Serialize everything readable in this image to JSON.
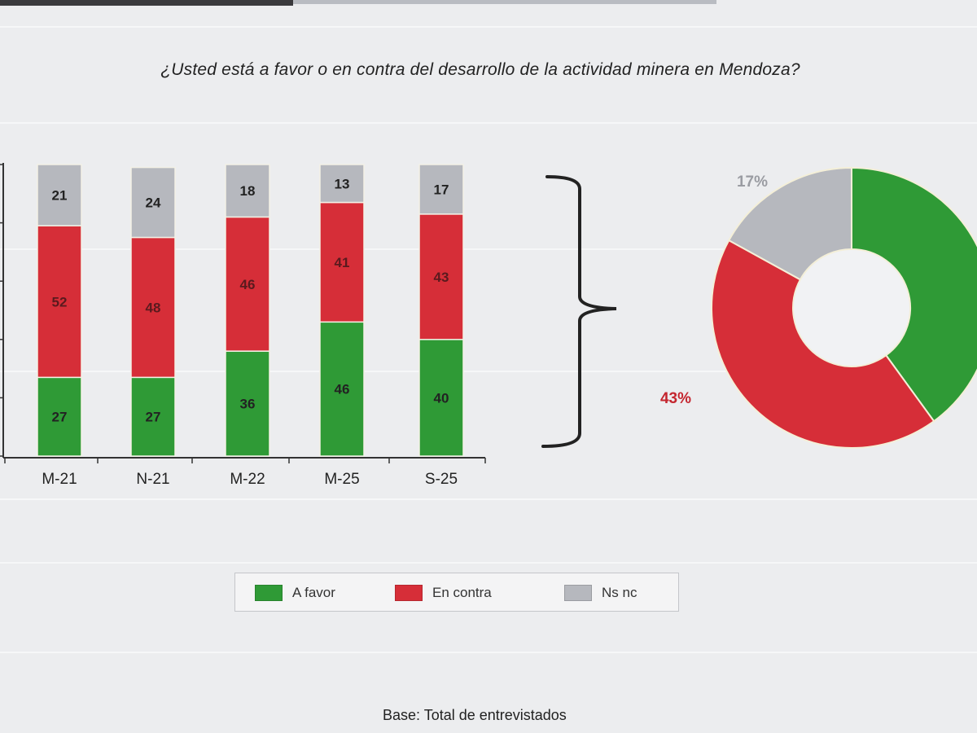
{
  "question": "¿Usted está a favor o en contra del desarrollo de la actividad minera en Mendoza?",
  "colors": {
    "a_favor": "#2f9a36",
    "en_contra": "#d62e38",
    "ns_nc": "#b6b8be"
  },
  "chart_data": [
    {
      "type": "bar",
      "stacked": true,
      "categories": [
        "M-21",
        "N-21",
        "M-22",
        "M-25",
        "S-25"
      ],
      "series": [
        {
          "name": "A favor",
          "values": [
            27,
            27,
            36,
            46,
            40
          ]
        },
        {
          "name": "En contra",
          "values": [
            52,
            48,
            46,
            41,
            43
          ]
        },
        {
          "name": "Ns nc",
          "values": [
            21,
            24,
            18,
            13,
            17
          ]
        }
      ],
      "ylim": [
        0,
        100
      ],
      "legend": "bottom"
    },
    {
      "type": "pie",
      "donut": true,
      "slices": [
        {
          "name": "A favor",
          "value": 40
        },
        {
          "name": "En contra",
          "value": 43,
          "label": "43%"
        },
        {
          "name": "Ns nc",
          "value": 17,
          "label": "17%"
        }
      ]
    }
  ],
  "legend": [
    {
      "label": "A favor",
      "color": "#2f9a36"
    },
    {
      "label": "En contra",
      "color": "#d62e38"
    },
    {
      "label": "Ns nc",
      "color": "#b6b8be"
    }
  ],
  "footer": "Base: Total de entrevistados"
}
